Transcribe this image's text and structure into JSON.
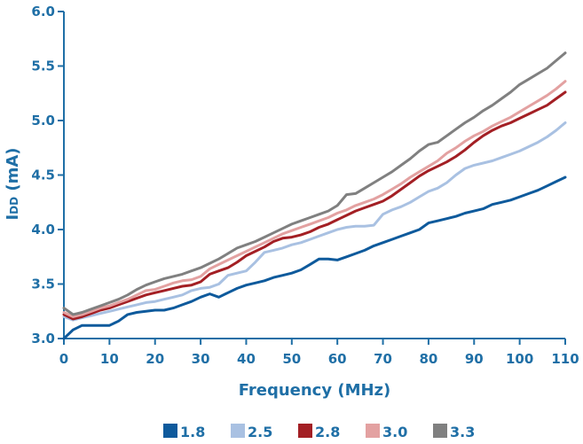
{
  "chart_data": {
    "type": "line",
    "xlabel": "Frequency (MHz)",
    "ylabel_main": "I",
    "ylabel_sub": "DD",
    "ylabel_unit": " (mA)",
    "xlim": [
      0,
      110
    ],
    "ylim": [
      3.0,
      6.0
    ],
    "x_ticks": [
      0,
      10,
      20,
      30,
      40,
      50,
      60,
      70,
      80,
      90,
      100,
      110
    ],
    "x_tick_labels": [
      "0",
      "10",
      "20",
      "30",
      "40",
      "50",
      "60",
      "70",
      "80",
      "90",
      "100",
      "110"
    ],
    "y_ticks": [
      3.0,
      3.5,
      4.0,
      4.5,
      5.0,
      5.5,
      6.0
    ],
    "y_tick_labels": [
      "3.0",
      "3.5",
      "4.0",
      "4.5",
      "5.0",
      "5.5",
      "6.0"
    ],
    "grid": false,
    "legend_position": "bottom-center",
    "series": [
      {
        "name": "1.8",
        "color": "#0e5a9c",
        "x": [
          0,
          2,
          4,
          6,
          8,
          10,
          12,
          14,
          16,
          18,
          20,
          22,
          24,
          26,
          28,
          30,
          32,
          34,
          36,
          38,
          40,
          42,
          44,
          46,
          48,
          50,
          52,
          54,
          56,
          58,
          60,
          62,
          64,
          66,
          68,
          70,
          72,
          74,
          76,
          78,
          80,
          82,
          84,
          86,
          88,
          90,
          92,
          94,
          96,
          98,
          100,
          102,
          104,
          106,
          108,
          110
        ],
        "values": [
          3.0,
          3.08,
          3.12,
          3.12,
          3.12,
          3.12,
          3.16,
          3.22,
          3.24,
          3.25,
          3.26,
          3.26,
          3.28,
          3.31,
          3.34,
          3.38,
          3.41,
          3.38,
          3.42,
          3.46,
          3.49,
          3.51,
          3.53,
          3.56,
          3.58,
          3.6,
          3.63,
          3.68,
          3.73,
          3.73,
          3.72,
          3.75,
          3.78,
          3.81,
          3.85,
          3.88,
          3.91,
          3.94,
          3.97,
          4.0,
          4.06,
          4.08,
          4.1,
          4.12,
          4.15,
          4.17,
          4.19,
          4.23,
          4.25,
          4.27,
          4.3,
          4.33,
          4.36,
          4.4,
          4.44,
          4.48
        ]
      },
      {
        "name": "2.5",
        "color": "#a9c1e2",
        "x": [
          0,
          2,
          4,
          6,
          8,
          10,
          12,
          14,
          16,
          18,
          20,
          22,
          24,
          26,
          28,
          30,
          32,
          34,
          36,
          38,
          40,
          42,
          44,
          46,
          48,
          50,
          52,
          54,
          56,
          58,
          60,
          62,
          64,
          66,
          68,
          70,
          72,
          74,
          76,
          78,
          80,
          82,
          84,
          86,
          88,
          90,
          92,
          94,
          96,
          98,
          100,
          102,
          104,
          106,
          108,
          110
        ],
        "values": [
          3.2,
          3.17,
          3.19,
          3.21,
          3.23,
          3.25,
          3.27,
          3.29,
          3.31,
          3.33,
          3.34,
          3.36,
          3.38,
          3.4,
          3.44,
          3.46,
          3.47,
          3.5,
          3.58,
          3.6,
          3.62,
          3.7,
          3.79,
          3.81,
          3.83,
          3.86,
          3.88,
          3.91,
          3.94,
          3.97,
          4.0,
          4.02,
          4.03,
          4.03,
          4.04,
          4.14,
          4.18,
          4.21,
          4.25,
          4.3,
          4.35,
          4.38,
          4.43,
          4.5,
          4.56,
          4.59,
          4.61,
          4.63,
          4.66,
          4.69,
          4.72,
          4.76,
          4.8,
          4.85,
          4.91,
          4.98
        ]
      },
      {
        "name": "2.8",
        "color": "#a31f24",
        "x": [
          0,
          2,
          4,
          6,
          8,
          10,
          12,
          14,
          16,
          18,
          20,
          22,
          24,
          26,
          28,
          30,
          32,
          34,
          36,
          38,
          40,
          42,
          44,
          46,
          48,
          50,
          52,
          54,
          56,
          58,
          60,
          62,
          64,
          66,
          68,
          70,
          72,
          74,
          76,
          78,
          80,
          82,
          84,
          86,
          88,
          90,
          92,
          94,
          96,
          98,
          100,
          102,
          104,
          106,
          108,
          110
        ],
        "values": [
          3.22,
          3.18,
          3.2,
          3.23,
          3.26,
          3.28,
          3.31,
          3.34,
          3.37,
          3.4,
          3.42,
          3.44,
          3.46,
          3.48,
          3.49,
          3.52,
          3.59,
          3.62,
          3.65,
          3.7,
          3.76,
          3.8,
          3.84,
          3.89,
          3.92,
          3.93,
          3.95,
          3.98,
          4.02,
          4.05,
          4.09,
          4.13,
          4.17,
          4.2,
          4.23,
          4.26,
          4.31,
          4.37,
          4.43,
          4.49,
          4.54,
          4.58,
          4.62,
          4.67,
          4.73,
          4.8,
          4.86,
          4.91,
          4.95,
          4.98,
          5.02,
          5.06,
          5.1,
          5.14,
          5.2,
          5.26
        ]
      },
      {
        "name": "3.0",
        "color": "#e3a1a1",
        "x": [
          0,
          2,
          4,
          6,
          8,
          10,
          12,
          14,
          16,
          18,
          20,
          22,
          24,
          26,
          28,
          30,
          32,
          34,
          36,
          38,
          40,
          42,
          44,
          46,
          48,
          50,
          52,
          54,
          56,
          58,
          60,
          62,
          64,
          66,
          68,
          70,
          72,
          74,
          76,
          78,
          80,
          82,
          84,
          86,
          88,
          90,
          92,
          94,
          96,
          98,
          100,
          102,
          104,
          106,
          108,
          110
        ],
        "values": [
          3.24,
          3.2,
          3.22,
          3.25,
          3.28,
          3.3,
          3.33,
          3.36,
          3.4,
          3.44,
          3.45,
          3.48,
          3.51,
          3.53,
          3.54,
          3.57,
          3.64,
          3.68,
          3.72,
          3.76,
          3.8,
          3.84,
          3.88,
          3.92,
          3.96,
          3.99,
          4.02,
          4.05,
          4.08,
          4.11,
          4.15,
          4.18,
          4.22,
          4.25,
          4.28,
          4.32,
          4.37,
          4.42,
          4.48,
          4.53,
          4.58,
          4.63,
          4.7,
          4.75,
          4.81,
          4.86,
          4.9,
          4.95,
          4.99,
          5.03,
          5.08,
          5.13,
          5.18,
          5.23,
          5.29,
          5.36
        ]
      },
      {
        "name": "3.3",
        "color": "#808080",
        "x": [
          0,
          2,
          4,
          6,
          8,
          10,
          12,
          14,
          16,
          18,
          20,
          22,
          24,
          26,
          28,
          30,
          32,
          34,
          36,
          38,
          40,
          42,
          44,
          46,
          48,
          50,
          52,
          54,
          56,
          58,
          60,
          62,
          64,
          66,
          68,
          70,
          72,
          74,
          76,
          78,
          80,
          82,
          84,
          86,
          88,
          90,
          92,
          94,
          96,
          98,
          100,
          102,
          104,
          106,
          108,
          110
        ],
        "values": [
          3.28,
          3.22,
          3.24,
          3.27,
          3.3,
          3.33,
          3.36,
          3.4,
          3.45,
          3.49,
          3.52,
          3.55,
          3.57,
          3.59,
          3.62,
          3.65,
          3.69,
          3.73,
          3.78,
          3.83,
          3.86,
          3.89,
          3.93,
          3.97,
          4.01,
          4.05,
          4.08,
          4.11,
          4.14,
          4.17,
          4.22,
          4.32,
          4.33,
          4.38,
          4.43,
          4.48,
          4.53,
          4.59,
          4.65,
          4.72,
          4.78,
          4.8,
          4.86,
          4.92,
          4.98,
          5.03,
          5.09,
          5.14,
          5.2,
          5.26,
          5.33,
          5.38,
          5.43,
          5.48,
          5.55,
          5.62
        ]
      }
    ]
  }
}
